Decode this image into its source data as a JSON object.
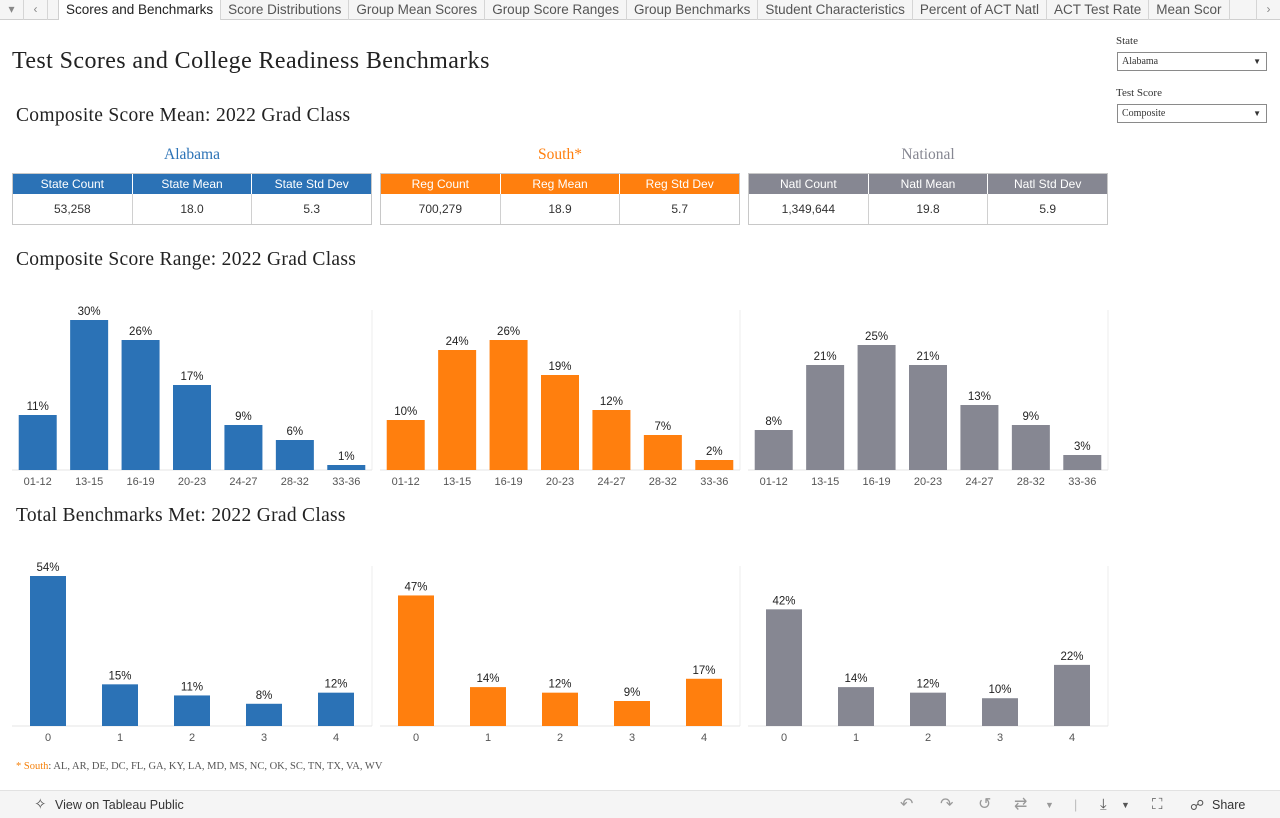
{
  "tabs": [
    "Scores and Benchmarks",
    "Score Distributions",
    "Group Mean Scores",
    "Group Score Ranges",
    "Group Benchmarks",
    "Student Characteristics",
    "Percent of ACT Natl",
    "ACT Test Rate",
    "Mean Scor"
  ],
  "title": "Test Scores and College Readiness Benchmarks",
  "filters": {
    "state_label": "State",
    "state_value": "Alabama",
    "score_label": "Test Score",
    "score_value": "Composite"
  },
  "section_titles": {
    "mean": "Composite Score Mean: 2022 Grad Class",
    "range": "Composite Score Range: 2022 Grad Class",
    "benchmarks": "Total Benchmarks Met: 2022 Grad Class"
  },
  "colors": {
    "state": "#2b72b6",
    "region": "#ff7f0e",
    "national": "#868792"
  },
  "regions": [
    {
      "name": "Alabama",
      "headers": [
        "State Count",
        "State Mean",
        "State Std Dev"
      ],
      "values": [
        "53,258",
        "18.0",
        "5.3"
      ]
    },
    {
      "name": "South*",
      "headers": [
        "Reg Count",
        "Reg Mean",
        "Reg Std Dev"
      ],
      "values": [
        "700,279",
        "18.9",
        "5.7"
      ]
    },
    {
      "name": "National",
      "headers": [
        "Natl Count",
        "Natl Mean",
        "Natl Std Dev"
      ],
      "values": [
        "1,349,644",
        "19.8",
        "5.9"
      ]
    }
  ],
  "chart_data": [
    {
      "type": "bar",
      "title": "Composite Score Range: 2022 Grad Class",
      "categories": [
        "01-12",
        "13-15",
        "16-19",
        "20-23",
        "24-27",
        "28-32",
        "33-36"
      ],
      "series": [
        {
          "name": "Alabama",
          "values": [
            11,
            30,
            26,
            17,
            9,
            6,
            1
          ]
        },
        {
          "name": "South*",
          "values": [
            10,
            24,
            26,
            19,
            12,
            7,
            2
          ]
        },
        {
          "name": "National",
          "values": [
            8,
            21,
            25,
            21,
            13,
            9,
            3
          ]
        }
      ],
      "unit": "%",
      "ylim": [
        0,
        30
      ]
    },
    {
      "type": "bar",
      "title": "Total Benchmarks Met: 2022 Grad Class",
      "categories": [
        "0",
        "1",
        "2",
        "3",
        "4"
      ],
      "series": [
        {
          "name": "Alabama",
          "values": [
            54,
            15,
            11,
            8,
            12
          ]
        },
        {
          "name": "South*",
          "values": [
            47,
            14,
            12,
            9,
            17
          ]
        },
        {
          "name": "National",
          "values": [
            42,
            14,
            12,
            10,
            22
          ]
        }
      ],
      "unit": "%",
      "ylim": [
        0,
        54
      ]
    }
  ],
  "footnote": {
    "mark": "* South",
    "states": ": AL, AR, DE, DC, FL, GA, KY, LA, MD, MS, NC, OK, SC, TN, TX, VA, WV"
  },
  "toolbar": {
    "view_label": "View on Tableau Public",
    "share_label": "Share"
  }
}
